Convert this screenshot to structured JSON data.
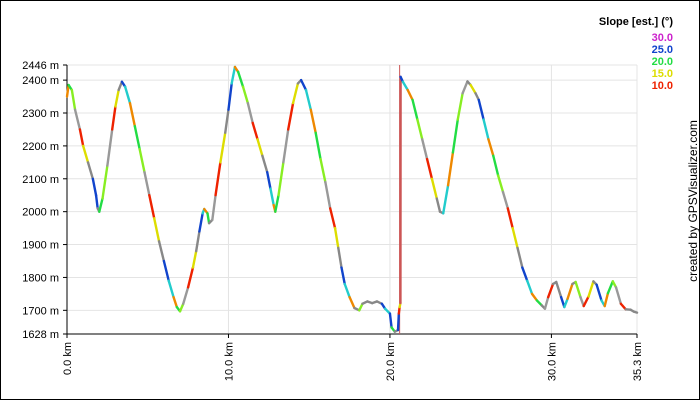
{
  "chart_data": {
    "type": "line",
    "x_unit": "km",
    "y_unit": "m",
    "xlim": [
      0,
      35.3
    ],
    "ylim": [
      1628,
      2446
    ],
    "grid": true,
    "y_ticks": [
      {
        "value": 2446,
        "label": "2446 m"
      },
      {
        "value": 2400,
        "label": "2400 m"
      },
      {
        "value": 2300,
        "label": "2300 m"
      },
      {
        "value": 2200,
        "label": "2200 m"
      },
      {
        "value": 2100,
        "label": "2100 m"
      },
      {
        "value": 2000,
        "label": "2000 m"
      },
      {
        "value": 1900,
        "label": "1900 m"
      },
      {
        "value": 1800,
        "label": "1800 m"
      },
      {
        "value": 1700,
        "label": "1700 m"
      },
      {
        "value": 1628,
        "label": "1628 m"
      }
    ],
    "x_ticks": [
      {
        "value": 0,
        "label": "0.0 km"
      },
      {
        "value": 10,
        "label": "10.0 km"
      },
      {
        "value": 20,
        "label": "20.0 km"
      },
      {
        "value": 30,
        "label": "30.0 km"
      },
      {
        "value": 35.3,
        "label": "35.3 km"
      }
    ],
    "marker_line_x": 20.6,
    "legend": {
      "title": "Slope [est.] (°)",
      "position": "top-right",
      "items": [
        {
          "label": "30.0",
          "color": "#cc22cc"
        },
        {
          "label": "25.0",
          "color": "#1144cc"
        },
        {
          "label": "20.0",
          "color": "#22dd44"
        },
        {
          "label": "15.0",
          "color": "#dddd00"
        },
        {
          "label": "10.0",
          "color": "#ee2200"
        }
      ]
    },
    "series": [
      {
        "points": [
          [
            0.0,
            2350
          ],
          [
            0.1,
            2385
          ],
          [
            0.3,
            2370
          ],
          [
            0.5,
            2310
          ],
          [
            0.8,
            2250
          ],
          [
            1.0,
            2200
          ],
          [
            1.3,
            2150
          ],
          [
            1.6,
            2100
          ],
          [
            1.8,
            2050
          ],
          [
            1.9,
            2010
          ],
          [
            2.0,
            2000
          ],
          [
            2.2,
            2040
          ],
          [
            2.5,
            2140
          ],
          [
            2.8,
            2250
          ],
          [
            3.0,
            2320
          ],
          [
            3.2,
            2370
          ],
          [
            3.4,
            2395
          ],
          [
            3.6,
            2380
          ],
          [
            3.9,
            2330
          ],
          [
            4.2,
            2260
          ],
          [
            4.5,
            2190
          ],
          [
            4.8,
            2120
          ],
          [
            5.1,
            2050
          ],
          [
            5.4,
            1980
          ],
          [
            5.7,
            1910
          ],
          [
            6.0,
            1850
          ],
          [
            6.3,
            1790
          ],
          [
            6.6,
            1740
          ],
          [
            6.8,
            1710
          ],
          [
            7.0,
            1697
          ],
          [
            7.2,
            1720
          ],
          [
            7.5,
            1770
          ],
          [
            7.8,
            1830
          ],
          [
            8.0,
            1880
          ],
          [
            8.2,
            1940
          ],
          [
            8.4,
            1995
          ],
          [
            8.5,
            2008
          ],
          [
            8.7,
            1995
          ],
          [
            8.8,
            1965
          ],
          [
            9.0,
            1975
          ],
          [
            9.2,
            2050
          ],
          [
            9.5,
            2150
          ],
          [
            9.8,
            2240
          ],
          [
            10.0,
            2310
          ],
          [
            10.2,
            2390
          ],
          [
            10.4,
            2440
          ],
          [
            10.6,
            2425
          ],
          [
            10.9,
            2380
          ],
          [
            11.2,
            2330
          ],
          [
            11.5,
            2270
          ],
          [
            11.8,
            2220
          ],
          [
            12.1,
            2170
          ],
          [
            12.4,
            2120
          ],
          [
            12.6,
            2070
          ],
          [
            12.8,
            2020
          ],
          [
            12.9,
            2000
          ],
          [
            13.1,
            2050
          ],
          [
            13.4,
            2150
          ],
          [
            13.7,
            2250
          ],
          [
            14.0,
            2330
          ],
          [
            14.3,
            2390
          ],
          [
            14.5,
            2400
          ],
          [
            14.8,
            2370
          ],
          [
            15.1,
            2310
          ],
          [
            15.4,
            2240
          ],
          [
            15.7,
            2160
          ],
          [
            16.0,
            2090
          ],
          [
            16.3,
            2010
          ],
          [
            16.6,
            1950
          ],
          [
            16.8,
            1890
          ],
          [
            17.0,
            1830
          ],
          [
            17.2,
            1780
          ],
          [
            17.5,
            1740
          ],
          [
            17.8,
            1707
          ],
          [
            18.1,
            1700
          ],
          [
            18.3,
            1720
          ],
          [
            18.6,
            1727
          ],
          [
            18.9,
            1722
          ],
          [
            19.2,
            1727
          ],
          [
            19.5,
            1720
          ],
          [
            19.7,
            1705
          ],
          [
            20.0,
            1690
          ],
          [
            20.1,
            1648
          ],
          [
            20.3,
            1635
          ],
          [
            20.5,
            1640
          ],
          [
            20.55,
            1690
          ],
          [
            20.6,
            1710
          ],
          [
            20.65,
            1722
          ],
          [
            20.66,
            2410
          ],
          [
            20.8,
            2395
          ],
          [
            21.1,
            2370
          ],
          [
            21.4,
            2340
          ],
          [
            21.7,
            2280
          ],
          [
            22.0,
            2220
          ],
          [
            22.3,
            2160
          ],
          [
            22.6,
            2100
          ],
          [
            22.9,
            2040
          ],
          [
            23.1,
            2000
          ],
          [
            23.3,
            1995
          ],
          [
            23.6,
            2080
          ],
          [
            23.9,
            2180
          ],
          [
            24.2,
            2280
          ],
          [
            24.5,
            2360
          ],
          [
            24.8,
            2396
          ],
          [
            25.0,
            2385
          ],
          [
            25.3,
            2360
          ],
          [
            25.5,
            2340
          ],
          [
            25.8,
            2280
          ],
          [
            26.1,
            2220
          ],
          [
            26.4,
            2170
          ],
          [
            26.7,
            2110
          ],
          [
            27.0,
            2060
          ],
          [
            27.3,
            2010
          ],
          [
            27.6,
            1950
          ],
          [
            27.9,
            1890
          ],
          [
            28.2,
            1830
          ],
          [
            28.5,
            1790
          ],
          [
            28.8,
            1750
          ],
          [
            29.1,
            1730
          ],
          [
            29.4,
            1715
          ],
          [
            29.6,
            1705
          ],
          [
            29.8,
            1740
          ],
          [
            30.1,
            1780
          ],
          [
            30.3,
            1786
          ],
          [
            30.6,
            1740
          ],
          [
            30.8,
            1710
          ],
          [
            31.0,
            1735
          ],
          [
            31.3,
            1780
          ],
          [
            31.5,
            1786
          ],
          [
            31.8,
            1740
          ],
          [
            32.0,
            1713
          ],
          [
            32.3,
            1742
          ],
          [
            32.6,
            1788
          ],
          [
            32.8,
            1778
          ],
          [
            33.1,
            1730
          ],
          [
            33.3,
            1713
          ],
          [
            33.5,
            1752
          ],
          [
            33.8,
            1788
          ],
          [
            34.0,
            1770
          ],
          [
            34.3,
            1720
          ],
          [
            34.6,
            1703
          ],
          [
            34.9,
            1702
          ],
          [
            35.1,
            1696
          ],
          [
            35.3,
            1693
          ]
        ]
      }
    ]
  },
  "credit": "created by GPSVisualizer.com"
}
